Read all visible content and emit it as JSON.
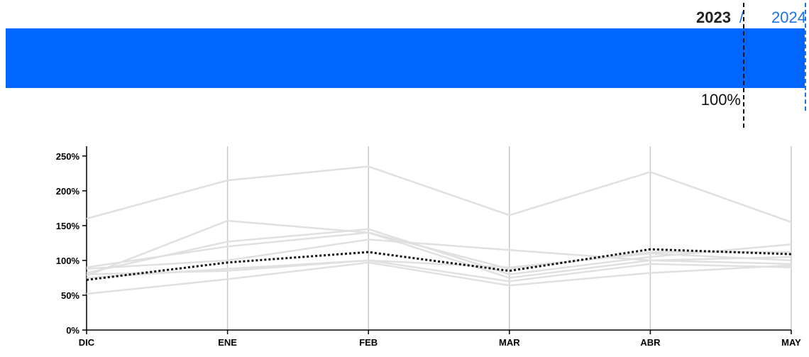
{
  "header": {
    "year_current": "2023",
    "year_prev": "2024",
    "year_sep": "/",
    "progress_value": 100,
    "progress_label": "100%",
    "bar_color": "#0066ff",
    "marker_prev_color": "#1a73e8"
  },
  "chart_data": {
    "type": "line",
    "categories": [
      "DIC",
      "ENE",
      "FEB",
      "MAR",
      "ABR",
      "MAY"
    ],
    "y_ticks": [
      "0%",
      "50%",
      "100%",
      "150%",
      "200%",
      "250%"
    ],
    "ylim": [
      0,
      260
    ],
    "grid": "vertical",
    "series": [
      {
        "values": [
          160,
          215,
          235,
          165,
          227,
          155
        ],
        "style": "background"
      },
      {
        "values": [
          78,
          157,
          140,
          75,
          100,
          95
        ],
        "style": "background"
      },
      {
        "values": [
          82,
          127,
          145,
          80,
          105,
          123
        ],
        "style": "background"
      },
      {
        "values": [
          90,
          120,
          140,
          88,
          112,
          112
        ],
        "style": "background"
      },
      {
        "values": [
          88,
          100,
          130,
          115,
          100,
          105
        ],
        "style": "background"
      },
      {
        "values": [
          75,
          88,
          100,
          70,
          95,
          90
        ],
        "style": "background"
      },
      {
        "values": [
          80,
          85,
          100,
          90,
          110,
          100
        ],
        "style": "background"
      },
      {
        "values": [
          52,
          73,
          97,
          64,
          82,
          93
        ],
        "style": "background"
      },
      {
        "values": [
          72,
          97,
          112,
          85,
          116,
          109
        ],
        "style": "highlight"
      }
    ]
  }
}
